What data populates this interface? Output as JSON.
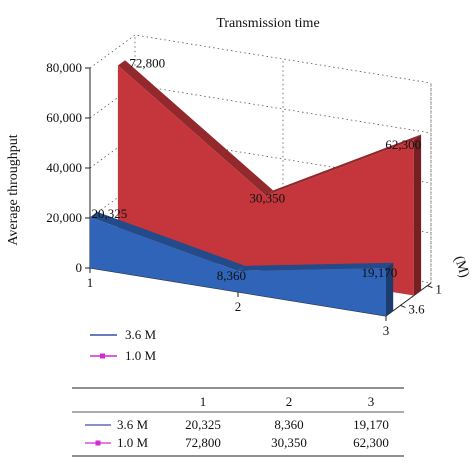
{
  "chart_data": {
    "type": "area",
    "title": "Transmission time",
    "ylabel": "Average throughput",
    "depth_axis_label": "(M)",
    "x": [
      1,
      2,
      3
    ],
    "x_tick_labels": [
      "1",
      "2",
      "3"
    ],
    "ylim": [
      0,
      80000
    ],
    "y_tick_labels": [
      "0",
      "20,000",
      "40,000",
      "60,000",
      "80,000"
    ],
    "depth_tick_labels": [
      "1",
      "3.6"
    ],
    "grid": true,
    "series": [
      {
        "name": "3.6 M",
        "values": [
          20325,
          8360,
          19170
        ],
        "labels": [
          "20,325",
          "8,360",
          "19,170"
        ],
        "color": "#2f64b8",
        "legend_color": "#3a50a8"
      },
      {
        "name": "1.0 M",
        "values": [
          72800,
          30350,
          62300
        ],
        "labels": [
          "72,800",
          "30,350",
          "62,300"
        ],
        "color": "#c4363b",
        "legend_color": "#d42ad4"
      }
    ],
    "table": {
      "headers": [
        "",
        "1",
        "2",
        "3"
      ],
      "rows": [
        {
          "name": "3.6 M",
          "cells": [
            "20,325",
            "8,360",
            "19,170"
          ]
        },
        {
          "name": "1.0 M",
          "cells": [
            "72,800",
            "30,350",
            "62,300"
          ]
        }
      ]
    }
  }
}
